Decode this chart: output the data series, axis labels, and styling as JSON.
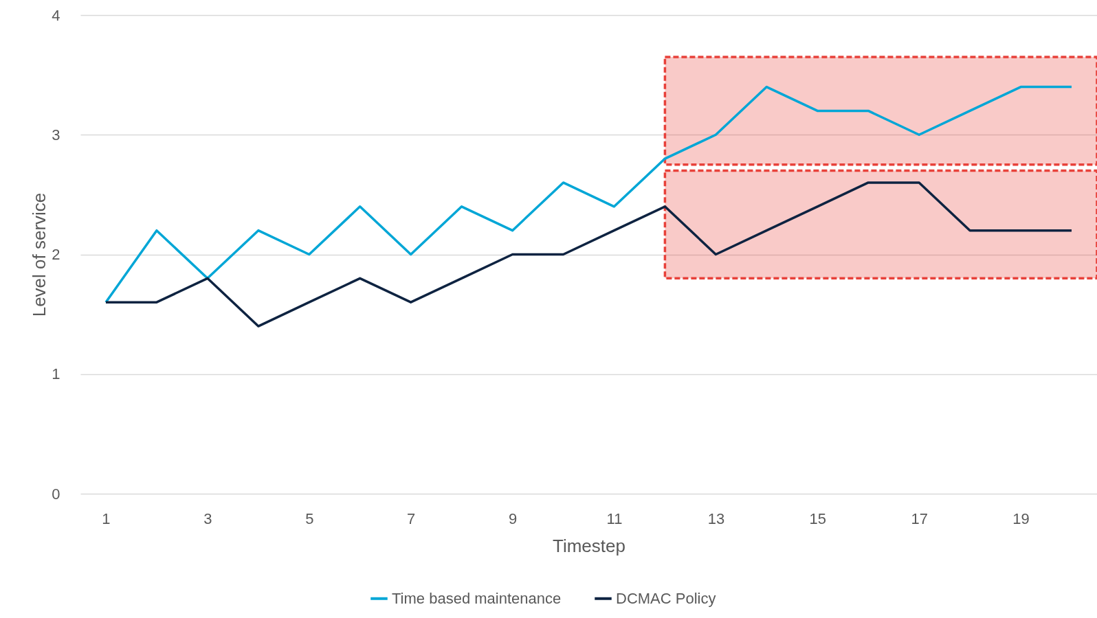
{
  "chart_data": {
    "type": "line",
    "xlabel": "Timestep",
    "ylabel": "Level of service",
    "x": [
      1,
      2,
      3,
      4,
      5,
      6,
      7,
      8,
      9,
      10,
      11,
      12,
      13,
      14,
      15,
      16,
      17,
      18,
      19,
      20
    ],
    "series": [
      {
        "name": "Time based maintenance",
        "color": "#00a6d6",
        "values": [
          1.6,
          2.2,
          1.8,
          2.2,
          2.0,
          2.4,
          2.0,
          2.4,
          2.2,
          2.6,
          2.4,
          2.8,
          3.0,
          3.4,
          3.2,
          3.2,
          3.0,
          3.2,
          3.4,
          3.4
        ]
      },
      {
        "name": "DCMAC Policy",
        "color": "#0e2341",
        "values": [
          1.6,
          1.6,
          1.8,
          1.4,
          1.6,
          1.8,
          1.6,
          1.8,
          2.0,
          2.0,
          2.2,
          2.4,
          2.0,
          2.2,
          2.4,
          2.6,
          2.6,
          2.2,
          2.2,
          2.2
        ]
      }
    ],
    "xlim": [
      0.5,
      20.5
    ],
    "xticks": [
      1,
      3,
      5,
      7,
      9,
      11,
      13,
      15,
      17,
      19
    ],
    "ylim": [
      0,
      4
    ],
    "yticks": [
      0,
      1,
      2,
      3,
      4
    ],
    "bands": [
      {
        "axis": "y",
        "from": 2.75,
        "to": 3.65,
        "color": "#e8413a"
      },
      {
        "axis": "y",
        "from": 1.8,
        "to": 2.7,
        "color": "#e8413a"
      }
    ],
    "grid": "y",
    "legend": "bottom",
    "marker": "none",
    "line_style": "solid"
  }
}
